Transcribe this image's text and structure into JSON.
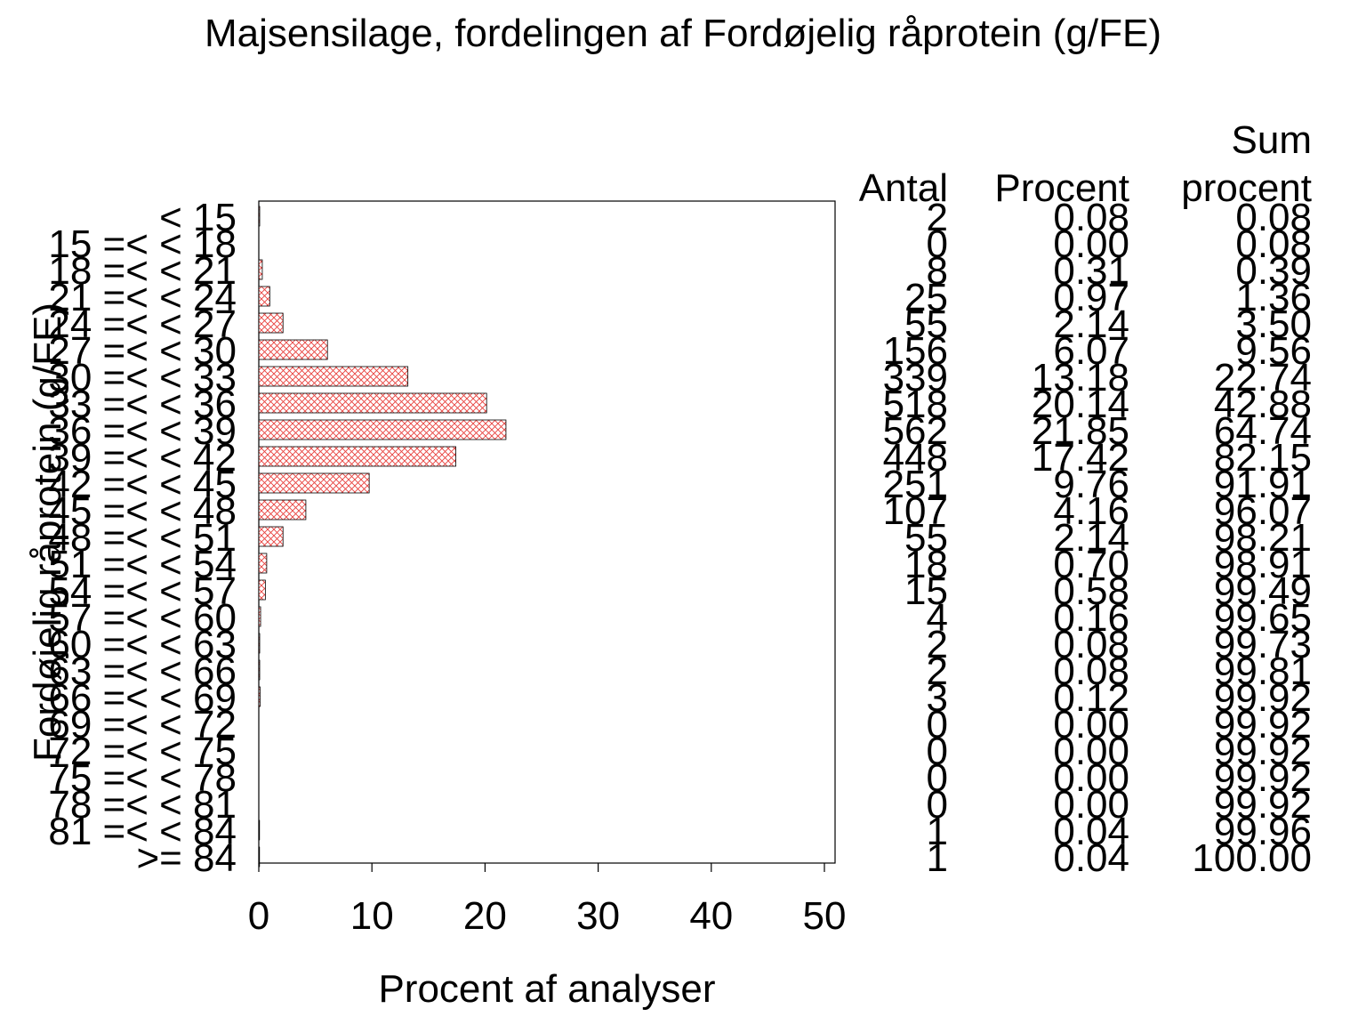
{
  "chart_data": {
    "type": "bar",
    "orientation": "horizontal",
    "title": "Majsensilage, fordelingen af Fordøjelig råprotein (g/FE)",
    "xlabel": "Procent af analyser",
    "ylabel": "Fordøjelig råprotein (g/FE)",
    "xlim": [
      0,
      50
    ],
    "xticks": [
      "0",
      "10",
      "20",
      "30",
      "40",
      "50"
    ],
    "categories": [
      "< 15",
      "15 =< < 18",
      "18 =< < 21",
      "21 =< < 24",
      "24 =< < 27",
      "27 =< < 30",
      "30 =< < 33",
      "33 =< < 36",
      "36 =< < 39",
      "39 =< < 42",
      "42 =< < 45",
      "45 =< < 48",
      "48 =< < 51",
      "51 =< < 54",
      "54 =< < 57",
      "57 =< < 60",
      "60 =< < 63",
      "63 =< < 66",
      "66 =< < 69",
      "69 =< < 72",
      "72 =< < 75",
      "75 =< < 78",
      "78 =< < 81",
      "81 =< < 84",
      ">= 84"
    ],
    "values": [
      0.08,
      0.0,
      0.31,
      0.97,
      2.14,
      6.07,
      13.18,
      20.14,
      21.85,
      17.42,
      9.76,
      4.16,
      2.14,
      0.7,
      0.58,
      0.16,
      0.08,
      0.08,
      0.12,
      0.0,
      0.0,
      0.0,
      0.0,
      0.04,
      0.04
    ],
    "bar_color": "#e8403c",
    "bar_pattern": "crosshatch",
    "table": {
      "headers": {
        "antal": "Antal",
        "procent": "Procent",
        "sum_top": "Sum",
        "sum_bottom": "procent"
      },
      "antal": [
        "2",
        "0",
        "8",
        "25",
        "55",
        "156",
        "339",
        "518",
        "562",
        "448",
        "251",
        "107",
        "55",
        "18",
        "15",
        "4",
        "2",
        "2",
        "3",
        "0",
        "0",
        "0",
        "0",
        "1",
        "1"
      ],
      "procent": [
        "0.08",
        "0.00",
        "0.31",
        "0.97",
        "2.14",
        "6.07",
        "13.18",
        "20.14",
        "21.85",
        "17.42",
        "9.76",
        "4.16",
        "2.14",
        "0.70",
        "0.58",
        "0.16",
        "0.08",
        "0.08",
        "0.12",
        "0.00",
        "0.00",
        "0.00",
        "0.00",
        "0.04",
        "0.04"
      ],
      "sum_procent": [
        "0.08",
        "0.08",
        "0.39",
        "1.36",
        "3.50",
        "9.56",
        "22.74",
        "42.88",
        "64.74",
        "82.15",
        "91.91",
        "96.07",
        "98.21",
        "98.91",
        "99.49",
        "99.65",
        "99.73",
        "99.81",
        "99.92",
        "99.92",
        "99.92",
        "99.92",
        "99.92",
        "99.96",
        "100.00"
      ]
    }
  }
}
